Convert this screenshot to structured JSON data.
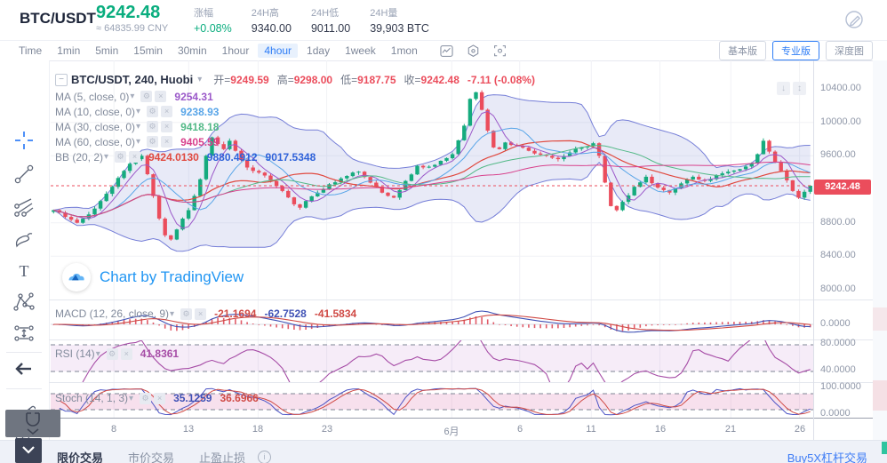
{
  "header": {
    "pair": "BTC/USDT",
    "price": "9242.48",
    "approx": "≈ 64835.99 CNY",
    "stats": [
      {
        "label": "涨幅",
        "value": "+0.08%",
        "green": true
      },
      {
        "label": "24H高",
        "value": "9340.00",
        "green": false
      },
      {
        "label": "24H低",
        "value": "9011.00",
        "green": false
      },
      {
        "label": "24H量",
        "value": "39,903 BTC",
        "green": false
      }
    ],
    "theme_icon": "palette-pencil-icon"
  },
  "toolbar": {
    "timeframes": [
      "Time",
      "1min",
      "5min",
      "15min",
      "30min",
      "1hour",
      "4hour",
      "1day",
      "1week",
      "1mon"
    ],
    "active_index": 6,
    "icons": [
      "chart-style-icon",
      "indicator-settings-icon",
      "screenshot-icon"
    ],
    "view_buttons": [
      {
        "label": "基本版",
        "active": false
      },
      {
        "label": "专业版",
        "active": true
      },
      {
        "label": "深度图",
        "active": false
      }
    ]
  },
  "left_toolbar": {
    "tools": [
      "crosshair",
      "trend-line",
      "pitchfork",
      "brush",
      "text",
      "xabcd-pattern",
      "long-position",
      "hide-toolbar-arrow",
      "ruler",
      "zoom-in",
      "magnet",
      "collapse-panel"
    ]
  },
  "legend": {
    "series_title": "BTC/USDT, 240, Huobi",
    "ohlc": [
      {
        "label": "开=",
        "value": "9249.59"
      },
      {
        "label": "高=",
        "value": "9298.00"
      },
      {
        "label": "低=",
        "value": "9187.75"
      },
      {
        "label": "收=",
        "value": "9242.48"
      }
    ],
    "change": "-7.11 (-0.08%)",
    "ma_rows": [
      {
        "label": "MA (5, close, 0)",
        "values": [
          {
            "text": "9254.31",
            "color": "#9b59c9"
          }
        ]
      },
      {
        "label": "MA (10, close, 0)",
        "values": [
          {
            "text": "9238.93",
            "color": "#58a5e8"
          }
        ]
      },
      {
        "label": "MA (30, close, 0)",
        "values": [
          {
            "text": "9418.18",
            "color": "#53b987"
          }
        ]
      },
      {
        "label": "MA (60, close, 0)",
        "values": [
          {
            "text": "9405.59",
            "color": "#d8418c"
          }
        ]
      },
      {
        "label": "BB (20, 2)",
        "values": [
          {
            "text": "9424.0130",
            "color": "#e0493f"
          },
          {
            "text": "9880.4912",
            "color": "#2f62d9"
          },
          {
            "text": "9017.5348",
            "color": "#2f62d9"
          }
        ]
      }
    ],
    "macd": {
      "label": "MACD (12, 26, close, 9)",
      "values": [
        {
          "text": "-21.1694",
          "color": "#d04a45"
        },
        {
          "text": "-62.7528",
          "color": "#3f51b5"
        },
        {
          "text": "-41.5834",
          "color": "#d04a45"
        }
      ]
    },
    "rsi": {
      "label": "RSI (14)",
      "values": [
        {
          "text": "41.8361",
          "color": "#a64ca6"
        }
      ]
    },
    "stoch": {
      "label": "Stoch (14, 1, 3)",
      "values": [
        {
          "text": "35.1259",
          "color": "#3f51b5"
        },
        {
          "text": "36.6966",
          "color": "#d04a45"
        }
      ]
    }
  },
  "axis": {
    "main_ticks": [
      {
        "label": "10400.00",
        "price": 10400
      },
      {
        "label": "10000.00",
        "price": 10000
      },
      {
        "label": "9600.00",
        "price": 9600
      },
      {
        "label": "8800.00",
        "price": 8800
      },
      {
        "label": "8400.00",
        "price": 8400
      },
      {
        "label": "8000.00",
        "price": 8000
      }
    ],
    "price_tag": "9242.48",
    "sub_labels": [
      "0.0000",
      "80.0000",
      "40.0000",
      "100.0000",
      "0.0000"
    ]
  },
  "watermark": {
    "text": "Chart by TradingView",
    "icon": "tradingview-logo-icon"
  },
  "bottom_bar": {
    "tabs": [
      "限价交易",
      "市价交易",
      "止盈止损"
    ],
    "info_icon": "info-icon",
    "link": "Buy5X杠杆交易"
  },
  "colors": {
    "up": "#15ab7e",
    "down": "#eb4d5c",
    "accent": "#2e7df6",
    "price_line": "#eb4d5c",
    "bb_border": "#5f6ad1",
    "bb_fill": "rgba(126,136,208,0.18)",
    "ma5": "#9b59c9",
    "ma10": "#58a5e8",
    "ma30": "#53b987",
    "ma60": "#d8418c",
    "bb_basis": "#e0493f",
    "macd_line": "#3f51b5",
    "macd_signal": "#d04a45",
    "macd_hist": "#e05c6a",
    "rsi_line": "#a64ca6",
    "rsi_fill": "rgba(171,71,188,0.10)",
    "stoch_k": "#4b53c5",
    "stoch_d": "#d04a45",
    "stoch_fill": "rgba(203,63,140,0.16)",
    "grid": "#f1f2f6",
    "watermark_blue": "#2196f3"
  },
  "chart_data": {
    "type": "candlestick",
    "symbol": "BTC/USDT",
    "interval": "240",
    "exchange": "Huobi",
    "current": {
      "open": 9249.59,
      "high": 9298.0,
      "low": 9187.75,
      "close": 9242.48,
      "change": -7.11,
      "change_pct": -0.08
    },
    "y_axis": {
      "min": 8000,
      "max": 10400,
      "tick_step": 400
    },
    "last_price": 9242.48,
    "candle_count": 130,
    "close_anchors": [
      [
        0,
        8950
      ],
      [
        2,
        8870
      ],
      [
        4,
        8800
      ],
      [
        6,
        8900
      ],
      [
        8,
        9060
      ],
      [
        10,
        9230
      ],
      [
        12,
        9420
      ],
      [
        14,
        9560
      ],
      [
        15,
        9600
      ],
      [
        16,
        9380
      ],
      [
        17,
        9120
      ],
      [
        18,
        8850
      ],
      [
        19,
        8650
      ],
      [
        20,
        8600
      ],
      [
        21,
        8720
      ],
      [
        22,
        8850
      ],
      [
        23,
        8950
      ],
      [
        24,
        9120
      ],
      [
        25,
        9320
      ],
      [
        26,
        9600
      ],
      [
        27,
        9820
      ],
      [
        28,
        9740
      ],
      [
        29,
        9680
      ],
      [
        30,
        9780
      ],
      [
        31,
        9660
      ],
      [
        32,
        9550
      ],
      [
        33,
        9460
      ],
      [
        34,
        9420
      ],
      [
        35,
        9400
      ],
      [
        37,
        9300
      ],
      [
        39,
        9180
      ],
      [
        41,
        9020
      ],
      [
        42,
        8980
      ],
      [
        43,
        9060
      ],
      [
        45,
        9160
      ],
      [
        47,
        9260
      ],
      [
        49,
        9330
      ],
      [
        51,
        9400
      ],
      [
        52,
        9410
      ],
      [
        54,
        9280
      ],
      [
        56,
        9160
      ],
      [
        58,
        9100
      ],
      [
        60,
        9300
      ],
      [
        62,
        9480
      ],
      [
        64,
        9470
      ],
      [
        66,
        9540
      ],
      [
        68,
        9620
      ],
      [
        70,
        9960
      ],
      [
        71,
        10280
      ],
      [
        72,
        10360
      ],
      [
        73,
        10150
      ],
      [
        74,
        9900
      ],
      [
        75,
        9700
      ],
      [
        76,
        9680
      ],
      [
        77,
        9760
      ],
      [
        79,
        9720
      ],
      [
        81,
        9660
      ],
      [
        84,
        9600
      ],
      [
        86,
        9560
      ],
      [
        88,
        9640
      ],
      [
        90,
        9700
      ],
      [
        92,
        9750
      ],
      [
        93,
        9600
      ],
      [
        94,
        9280
      ],
      [
        95,
        9000
      ],
      [
        96,
        8950
      ],
      [
        97,
        9050
      ],
      [
        99,
        9230
      ],
      [
        101,
        9350
      ],
      [
        103,
        9220
      ],
      [
        105,
        9160
      ],
      [
        107,
        9270
      ],
      [
        109,
        9350
      ],
      [
        111,
        9300
      ],
      [
        113,
        9370
      ],
      [
        115,
        9410
      ],
      [
        117,
        9440
      ],
      [
        119,
        9510
      ],
      [
        120,
        9620
      ],
      [
        121,
        9780
      ],
      [
        122,
        9650
      ],
      [
        124,
        9420
      ],
      [
        126,
        9180
      ],
      [
        127,
        9100
      ],
      [
        128,
        9170
      ],
      [
        129,
        9242
      ]
    ],
    "indicators": {
      "ma_periods": [
        5,
        10,
        30,
        60
      ],
      "bb": {
        "period": 20,
        "stdev": 2
      },
      "macd": [
        12,
        26,
        9
      ],
      "rsi": 14,
      "stoch": [
        14,
        1,
        3
      ],
      "rsi_band": [
        40,
        80
      ],
      "stoch_band": [
        20,
        80
      ]
    },
    "time_ticks": [
      {
        "label": "8",
        "pos": 0.083
      },
      {
        "label": "13",
        "pos": 0.181
      },
      {
        "label": "18",
        "pos": 0.272
      },
      {
        "label": "23",
        "pos": 0.362
      },
      {
        "label": "6月",
        "pos": 0.526
      },
      {
        "label": "6",
        "pos": 0.615
      },
      {
        "label": "11",
        "pos": 0.709
      },
      {
        "label": "16",
        "pos": 0.799
      },
      {
        "label": "21",
        "pos": 0.892
      },
      {
        "label": "26",
        "pos": 0.982
      }
    ]
  }
}
